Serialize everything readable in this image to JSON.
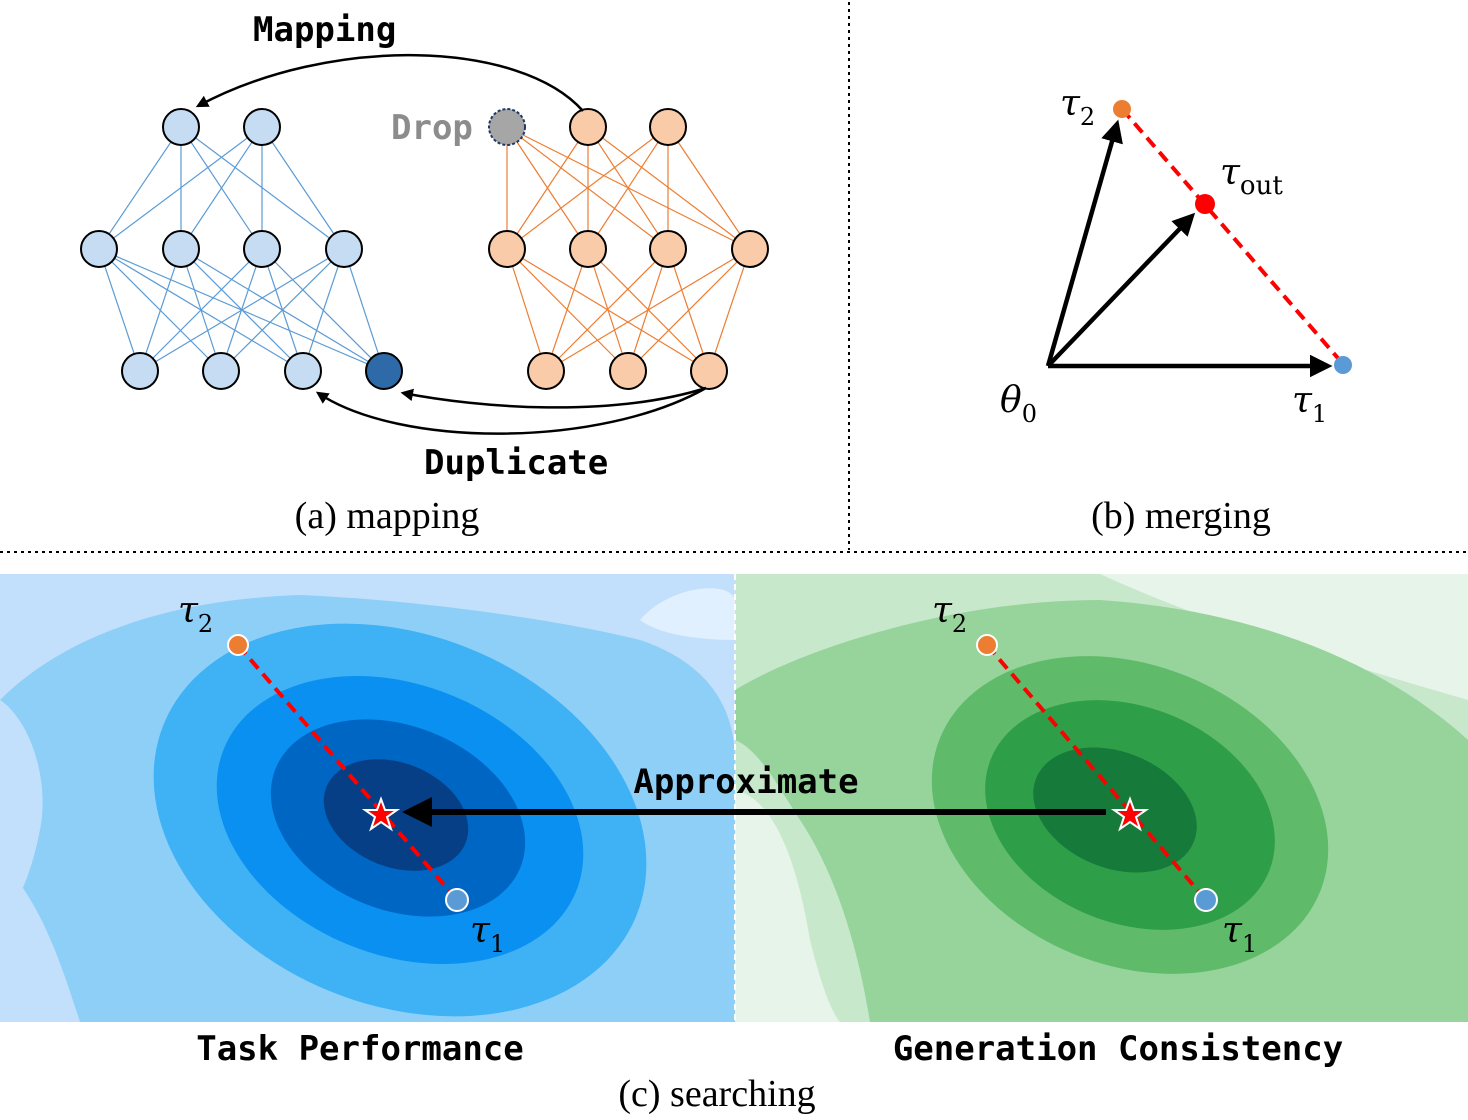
{
  "panel_a": {
    "caption": "(a) mapping",
    "mapping_label": "Mapping",
    "drop_label": "Drop",
    "duplicate_label": "Duplicate",
    "colors": {
      "blue_node": "#c5dcf2",
      "blue_dark": "#2f6aa8",
      "orange_node": "#f9cba9",
      "blue_edge": "#5b9bd5",
      "orange_edge": "#ed7d31",
      "drop_node": "#a6a6a6"
    }
  },
  "panel_b": {
    "caption": "(b) merging",
    "tau2": "τ",
    "tau2_sub": "2",
    "tau_out": "τ",
    "tau_out_sub": "out",
    "theta0": "θ",
    "theta0_sub": "0",
    "tau1": "τ",
    "tau1_sub": "1",
    "colors": {
      "tau2": "#ed7d31",
      "tau_out": "#ff0000",
      "tau1": "#5b9bd5"
    }
  },
  "panel_c": {
    "caption": "(c) searching",
    "left_label": "Task Performance",
    "right_label": "Generation Consistency",
    "approximate_label": "Approximate",
    "tau2": "τ",
    "tau2_sub": "2",
    "tau1": "τ",
    "tau1_sub": "1",
    "colors": {
      "blue_levels": [
        "#c2e0fb",
        "#8ecff8",
        "#3fb1f5",
        "#0a90f0",
        "#0066c4",
        "#063f85"
      ],
      "green_levels": [
        "#e6f4e9",
        "#c8e8cc",
        "#97d49c",
        "#5fbb6a",
        "#2f9e49",
        "#157a3a"
      ]
    }
  }
}
